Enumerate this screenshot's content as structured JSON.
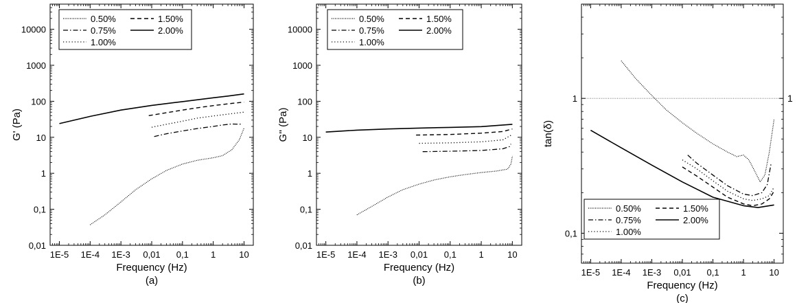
{
  "chart_data": [
    {
      "type": "line",
      "panel_label": "(a)",
      "xlabel": "Frequency (Hz)",
      "ylabel": "G' (Pa)",
      "xscale": "log",
      "yscale": "log",
      "xlim": [
        5e-06,
        20
      ],
      "ylim": [
        0.01,
        50000
      ],
      "x_ticks": [
        {
          "v": 1e-05,
          "label": "1E-5"
        },
        {
          "v": 0.0001,
          "label": "1E-4"
        },
        {
          "v": 0.001,
          "label": "1E-3"
        },
        {
          "v": 0.01,
          "label": "0,01"
        },
        {
          "v": 0.1,
          "label": "0,1"
        },
        {
          "v": 1,
          "label": "1"
        },
        {
          "v": 10,
          "label": "10"
        }
      ],
      "y_ticks": [
        {
          "v": 0.01,
          "label": "0,01"
        },
        {
          "v": 0.1,
          "label": "0,1"
        },
        {
          "v": 1,
          "label": "1"
        },
        {
          "v": 10,
          "label": "10"
        },
        {
          "v": 100,
          "label": "100"
        },
        {
          "v": 1000,
          "label": "1000"
        },
        {
          "v": 10000,
          "label": "10000"
        }
      ],
      "legend": {
        "placement": "top-left",
        "entries": [
          "0.50%",
          "0.75%",
          "1.00%",
          "1.50%",
          "2.00%"
        ]
      },
      "series": [
        {
          "name": "0.50%",
          "dash": "dotted",
          "x": [
            0.0001,
            0.0003,
            0.001,
            0.003,
            0.01,
            0.03,
            0.1,
            0.3,
            1,
            2,
            4,
            7,
            10
          ],
          "y": [
            0.037,
            0.07,
            0.16,
            0.35,
            0.7,
            1.2,
            1.8,
            2.3,
            2.7,
            3.1,
            4.5,
            8.5,
            18
          ]
        },
        {
          "name": "0.75%",
          "dash": "dashdot",
          "x": [
            0.012,
            0.03,
            0.1,
            0.3,
            1,
            2,
            4,
            7,
            9
          ],
          "y": [
            10.5,
            12.5,
            15,
            17.5,
            20,
            22,
            23.5,
            23,
            24
          ]
        },
        {
          "name": "1.00%",
          "dash": "dotted-sparse",
          "x": [
            0.01,
            0.03,
            0.1,
            0.3,
            1,
            3,
            10
          ],
          "y": [
            19,
            23,
            28,
            34,
            39,
            44,
            50
          ]
        },
        {
          "name": "1.50%",
          "dash": "dashed",
          "x": [
            0.008,
            0.03,
            0.1,
            0.3,
            1,
            3,
            10
          ],
          "y": [
            40,
            48,
            57,
            66,
            76,
            85,
            95
          ]
        },
        {
          "name": "2.00%",
          "dash": "solid",
          "x": [
            1e-05,
            0.0001,
            0.001,
            0.01,
            0.1,
            1,
            3,
            10
          ],
          "y": [
            24,
            38,
            57,
            77,
            98,
            125,
            140,
            160
          ]
        }
      ]
    },
    {
      "type": "line",
      "panel_label": "(b)",
      "xlabel": "Frequency (Hz)",
      "ylabel": "G'' (Pa)",
      "xscale": "log",
      "yscale": "log",
      "xlim": [
        5e-06,
        20
      ],
      "ylim": [
        0.01,
        50000
      ],
      "x_ticks": [
        {
          "v": 1e-05,
          "label": "1E-5"
        },
        {
          "v": 0.0001,
          "label": "1E-4"
        },
        {
          "v": 0.001,
          "label": "1E-3"
        },
        {
          "v": 0.01,
          "label": "0,01"
        },
        {
          "v": 0.1,
          "label": "0,1"
        },
        {
          "v": 1,
          "label": "1"
        },
        {
          "v": 10,
          "label": "10"
        }
      ],
      "y_ticks": [
        {
          "v": 0.01,
          "label": "0,01"
        },
        {
          "v": 0.1,
          "label": "0,1"
        },
        {
          "v": 1,
          "label": "1"
        },
        {
          "v": 10,
          "label": "10"
        },
        {
          "v": 100,
          "label": "100"
        },
        {
          "v": 1000,
          "label": "1000"
        },
        {
          "v": 10000,
          "label": "10000"
        }
      ],
      "legend": {
        "placement": "top-left",
        "entries": [
          "0.50%",
          "0.75%",
          "1.00%",
          "1.50%",
          "2.00%"
        ]
      },
      "series": [
        {
          "name": "0.50%",
          "dash": "dotted",
          "x": [
            0.0001,
            0.0003,
            0.001,
            0.003,
            0.01,
            0.03,
            0.1,
            0.3,
            1,
            3,
            7,
            9,
            10
          ],
          "y": [
            0.07,
            0.12,
            0.22,
            0.35,
            0.5,
            0.65,
            0.8,
            0.92,
            1.05,
            1.15,
            1.3,
            1.8,
            3
          ]
        },
        {
          "name": "0.75%",
          "dash": "dashdot",
          "x": [
            0.013,
            0.1,
            1,
            5,
            8,
            9
          ],
          "y": [
            4,
            4.1,
            4.3,
            4.8,
            5.5,
            6.5
          ]
        },
        {
          "name": "1.00%",
          "dash": "dotted-sparse",
          "x": [
            0.01,
            0.1,
            1,
            5,
            10
          ],
          "y": [
            6.8,
            7,
            7.5,
            8.5,
            12
          ]
        },
        {
          "name": "1.50%",
          "dash": "dashed",
          "x": [
            0.008,
            0.1,
            1,
            5,
            10
          ],
          "y": [
            11.5,
            12,
            13,
            14.5,
            17
          ]
        },
        {
          "name": "2.00%",
          "dash": "solid",
          "x": [
            1e-05,
            0.0001,
            0.001,
            0.01,
            0.1,
            1,
            10
          ],
          "y": [
            14,
            15.8,
            17,
            18,
            18.8,
            19.8,
            23
          ]
        }
      ]
    },
    {
      "type": "line",
      "panel_label": "(c)",
      "xlabel": "Frequency (Hz)",
      "ylabel": "tan(δ)",
      "xscale": "log",
      "yscale": "log",
      "xlim": [
        5e-06,
        20
      ],
      "ylim": [
        0.06,
        5
      ],
      "x_ticks": [
        {
          "v": 1e-05,
          "label": "1E-5"
        },
        {
          "v": 0.0001,
          "label": "1E-4"
        },
        {
          "v": 0.001,
          "label": "1E-3"
        },
        {
          "v": 0.01,
          "label": "0,01"
        },
        {
          "v": 0.1,
          "label": "0,1"
        },
        {
          "v": 1,
          "label": "1"
        },
        {
          "v": 10,
          "label": "10"
        }
      ],
      "y_ticks": [
        {
          "v": 0.1,
          "label": "0,1"
        },
        {
          "v": 1,
          "label": "1"
        }
      ],
      "reference_line": {
        "y": 1,
        "label": "1"
      },
      "legend": {
        "placement": "bottom-left",
        "entries": [
          "0.50%",
          "0.75%",
          "1.00%",
          "1.50%",
          "2.00%"
        ]
      },
      "series": [
        {
          "name": "0.50%",
          "dash": "dotted",
          "x": [
            0.0001,
            0.0003,
            0.001,
            0.003,
            0.01,
            0.03,
            0.1,
            0.3,
            0.6,
            1,
            1.5,
            2.5,
            3.5,
            5,
            7,
            10
          ],
          "y": [
            1.9,
            1.4,
            1.05,
            0.82,
            0.66,
            0.55,
            0.46,
            0.4,
            0.37,
            0.38,
            0.35,
            0.28,
            0.24,
            0.27,
            0.4,
            0.7
          ]
        },
        {
          "name": "0.75%",
          "dash": "dashdot",
          "x": [
            0.015,
            0.03,
            0.1,
            0.3,
            1,
            2,
            4,
            6,
            8
          ],
          "y": [
            0.38,
            0.33,
            0.27,
            0.225,
            0.195,
            0.19,
            0.2,
            0.23,
            0.33
          ]
        },
        {
          "name": "1.00%",
          "dash": "dotted-sparse",
          "x": [
            0.01,
            0.03,
            0.1,
            0.3,
            1,
            2,
            4,
            7,
            10
          ],
          "y": [
            0.35,
            0.3,
            0.245,
            0.205,
            0.18,
            0.175,
            0.18,
            0.19,
            0.22
          ]
        },
        {
          "name": "1.50%",
          "dash": "dashed",
          "x": [
            0.01,
            0.03,
            0.1,
            0.3,
            1,
            2,
            4,
            7,
            10
          ],
          "y": [
            0.31,
            0.265,
            0.22,
            0.185,
            0.165,
            0.16,
            0.165,
            0.18,
            0.205
          ]
        },
        {
          "name": "2.00%",
          "dash": "solid",
          "x": [
            1e-05,
            0.0001,
            0.001,
            0.01,
            0.1,
            1,
            3,
            10
          ],
          "y": [
            0.58,
            0.43,
            0.32,
            0.24,
            0.185,
            0.16,
            0.155,
            0.162
          ]
        }
      ]
    }
  ]
}
